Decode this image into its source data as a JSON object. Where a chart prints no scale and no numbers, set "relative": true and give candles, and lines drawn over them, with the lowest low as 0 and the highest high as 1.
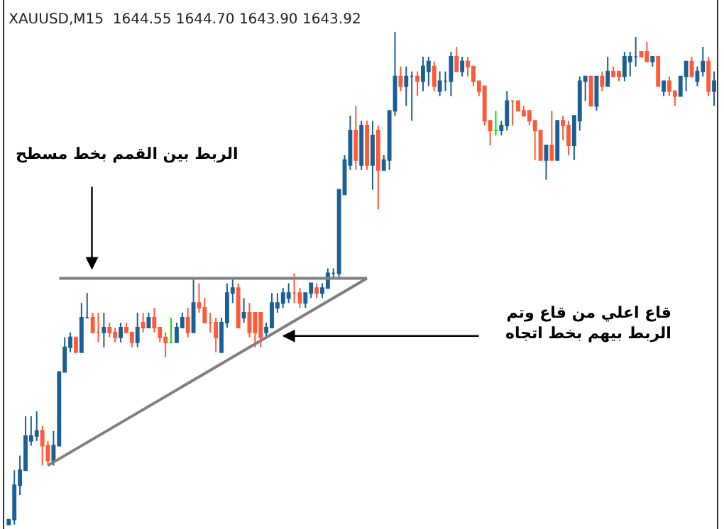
{
  "chart_data": {
    "type": "candlestick",
    "title": "XAUUSD,M15  1644.55 1644.70 1643.90 1643.92",
    "relative": true,
    "tick_labels": false,
    "categories": [
      null,
      null,
      null,
      null,
      null,
      null,
      null,
      null,
      null,
      null,
      null,
      null,
      null,
      null,
      null,
      null,
      null,
      null,
      null,
      null,
      null,
      null,
      null,
      null,
      null,
      null,
      null,
      null,
      null,
      null,
      null,
      null,
      null,
      null,
      null,
      null,
      null,
      null,
      null,
      null,
      null,
      null,
      null,
      null,
      null,
      null,
      null,
      null,
      null,
      null,
      null,
      null,
      null,
      null,
      null,
      null,
      null,
      null,
      null,
      null,
      null,
      null,
      null,
      null,
      null,
      null,
      null,
      null,
      null,
      null,
      null,
      null,
      null,
      null,
      null,
      null,
      null,
      null,
      null,
      null,
      null,
      null,
      null,
      null,
      null,
      null,
      null,
      null,
      null,
      null,
      null,
      null,
      null,
      null,
      null,
      null,
      null,
      null,
      null,
      null,
      null,
      null,
      null,
      null,
      null,
      null,
      null,
      null,
      null,
      null,
      null,
      null,
      null,
      null,
      null,
      null,
      null,
      null,
      null,
      null,
      null,
      null,
      null,
      null,
      null,
      null,
      null
    ],
    "ohlc": [
      [
        0.0,
        0.01,
        0.0,
        0.01
      ],
      [
        0.01,
        0.11,
        0.0,
        0.08
      ],
      [
        0.08,
        0.14,
        0.06,
        0.11
      ],
      [
        0.11,
        0.22,
        0.11,
        0.18
      ],
      [
        0.17,
        0.22,
        0.16,
        0.18
      ],
      [
        0.18,
        0.23,
        0.17,
        0.19
      ],
      [
        0.19,
        0.2,
        0.12,
        0.16
      ],
      [
        0.16,
        0.17,
        0.12,
        0.13
      ],
      [
        0.13,
        0.19,
        0.12,
        0.16
      ],
      [
        0.16,
        0.31,
        0.16,
        0.31
      ],
      [
        0.31,
        0.38,
        0.31,
        0.36
      ],
      [
        0.36,
        0.39,
        0.35,
        0.38
      ],
      [
        0.38,
        0.38,
        0.35,
        0.35
      ],
      [
        0.35,
        0.45,
        0.35,
        0.42
      ],
      [
        0.42,
        0.47,
        0.42,
        0.42
      ],
      [
        0.42,
        0.43,
        0.39,
        0.39
      ],
      [
        0.39,
        0.43,
        0.37,
        0.39
      ],
      [
        0.39,
        0.43,
        0.36,
        0.4
      ],
      [
        0.4,
        0.41,
        0.38,
        0.39
      ],
      [
        0.39,
        0.4,
        0.37,
        0.38
      ],
      [
        0.38,
        0.41,
        0.37,
        0.4
      ],
      [
        0.4,
        0.41,
        0.39,
        0.39
      ],
      [
        0.39,
        0.39,
        0.36,
        0.37
      ],
      [
        0.37,
        0.43,
        0.36,
        0.4
      ],
      [
        0.41,
        0.43,
        0.39,
        0.4
      ],
      [
        0.4,
        0.43,
        0.4,
        0.42
      ],
      [
        0.42,
        0.44,
        0.39,
        0.4
      ],
      [
        0.4,
        0.4,
        0.37,
        0.38
      ],
      [
        0.38,
        0.39,
        0.34,
        0.37
      ],
      [
        0.37,
        0.42,
        0.37,
        0.37
      ],
      [
        0.37,
        0.41,
        0.37,
        0.4
      ],
      [
        0.4,
        0.43,
        0.4,
        0.42
      ],
      [
        0.42,
        0.44,
        0.38,
        0.39
      ],
      [
        0.39,
        0.5,
        0.39,
        0.45
      ],
      [
        0.45,
        0.49,
        0.43,
        0.44
      ],
      [
        0.44,
        0.46,
        0.41,
        0.41
      ],
      [
        0.41,
        0.43,
        0.39,
        0.41
      ],
      [
        0.41,
        0.42,
        0.35,
        0.38
      ],
      [
        0.35,
        0.42,
        0.35,
        0.41
      ],
      [
        0.41,
        0.49,
        0.4,
        0.47
      ],
      [
        0.47,
        0.5,
        0.45,
        0.48
      ],
      [
        0.48,
        0.49,
        0.4,
        0.4
      ],
      [
        0.42,
        0.46,
        0.41,
        0.43
      ],
      [
        0.43,
        0.45,
        0.38,
        0.39
      ],
      [
        0.43,
        0.43,
        0.36,
        0.39
      ],
      [
        0.43,
        0.43,
        0.36,
        0.38
      ],
      [
        0.39,
        0.41,
        0.38,
        0.4
      ],
      [
        0.4,
        0.47,
        0.4,
        0.45
      ],
      [
        0.44,
        0.47,
        0.43,
        0.45
      ],
      [
        0.45,
        0.48,
        0.44,
        0.47
      ],
      [
        0.46,
        0.49,
        0.45,
        0.47
      ],
      [
        0.47,
        0.51,
        0.45,
        0.47
      ],
      [
        0.47,
        0.48,
        0.44,
        0.45
      ],
      [
        0.45,
        0.47,
        0.44,
        0.47
      ],
      [
        0.47,
        0.49,
        0.46,
        0.49
      ],
      [
        0.48,
        0.49,
        0.46,
        0.47
      ],
      [
        0.47,
        0.49,
        0.46,
        0.48
      ],
      [
        0.48,
        0.52,
        0.48,
        0.51
      ],
      [
        0.51,
        0.52,
        0.5,
        0.51
      ],
      [
        0.51,
        0.68,
        0.5,
        0.68
      ],
      [
        0.67,
        0.75,
        0.67,
        0.74
      ],
      [
        0.73,
        0.83,
        0.72,
        0.8
      ],
      [
        0.8,
        0.85,
        0.72,
        0.74
      ],
      [
        0.73,
        0.82,
        0.72,
        0.81
      ],
      [
        0.81,
        0.82,
        0.72,
        0.73
      ],
      [
        0.73,
        0.82,
        0.68,
        0.79
      ],
      [
        0.8,
        0.81,
        0.64,
        0.72
      ],
      [
        0.72,
        0.75,
        0.72,
        0.74
      ],
      [
        0.74,
        0.84,
        0.72,
        0.84
      ],
      [
        0.84,
        1.0,
        0.83,
        0.91
      ],
      [
        0.91,
        0.93,
        0.88,
        0.89
      ],
      [
        0.89,
        0.93,
        0.85,
        0.91
      ],
      [
        0.91,
        0.92,
        0.82,
        0.91
      ],
      [
        0.91,
        0.92,
        0.87,
        0.9
      ],
      [
        0.9,
        0.95,
        0.88,
        0.93
      ],
      [
        0.92,
        0.95,
        0.89,
        0.94
      ],
      [
        0.93,
        0.94,
        0.88,
        0.89
      ],
      [
        0.88,
        0.92,
        0.87,
        0.9
      ],
      [
        0.9,
        0.92,
        0.88,
        0.9
      ],
      [
        0.9,
        0.96,
        0.87,
        0.95
      ],
      [
        0.95,
        0.97,
        0.92,
        0.92
      ],
      [
        0.92,
        0.95,
        0.91,
        0.94
      ],
      [
        0.94,
        0.95,
        0.91,
        0.93
      ],
      [
        0.93,
        0.93,
        0.89,
        0.9
      ],
      [
        0.9,
        0.9,
        0.87,
        0.88
      ],
      [
        0.89,
        0.89,
        0.81,
        0.82
      ],
      [
        0.82,
        0.82,
        0.77,
        0.8
      ],
      [
        0.8,
        0.84,
        0.79,
        0.8
      ],
      [
        0.8,
        0.82,
        0.79,
        0.81
      ],
      [
        0.81,
        0.88,
        0.8,
        0.86
      ],
      [
        0.86,
        0.86,
        0.81,
        0.86
      ],
      [
        0.86,
        0.86,
        0.84,
        0.84
      ],
      [
        0.84,
        0.85,
        0.83,
        0.83
      ],
      [
        0.84,
        0.84,
        0.81,
        0.82
      ],
      [
        0.82,
        0.82,
        0.74,
        0.8
      ],
      [
        0.8,
        0.8,
        0.74,
        0.74
      ],
      [
        0.74,
        0.77,
        0.7,
        0.77
      ],
      [
        0.77,
        0.84,
        0.74,
        0.74
      ],
      [
        0.74,
        0.82,
        0.74,
        0.82
      ],
      [
        0.82,
        0.83,
        0.78,
        0.81
      ],
      [
        0.81,
        0.82,
        0.75,
        0.77
      ],
      [
        0.77,
        0.83,
        0.74,
        0.83
      ],
      [
        0.82,
        0.91,
        0.8,
        0.9
      ],
      [
        0.9,
        0.91,
        0.86,
        0.91
      ],
      [
        0.91,
        0.91,
        0.85,
        0.85
      ],
      [
        0.85,
        0.91,
        0.84,
        0.91
      ],
      [
        0.91,
        0.92,
        0.88,
        0.89
      ],
      [
        0.89,
        0.95,
        0.89,
        0.92
      ],
      [
        0.92,
        0.93,
        0.91,
        0.91
      ],
      [
        0.92,
        0.92,
        0.9,
        0.91
      ],
      [
        0.91,
        0.96,
        0.9,
        0.95
      ],
      [
        0.94,
        0.96,
        0.91,
        0.95
      ],
      [
        0.95,
        0.99,
        0.93,
        0.95
      ],
      [
        0.96,
        0.96,
        0.95,
        0.95
      ],
      [
        0.96,
        0.98,
        0.94,
        0.94
      ],
      [
        0.94,
        0.95,
        0.93,
        0.95
      ],
      [
        0.95,
        0.95,
        0.89,
        0.89
      ],
      [
        0.88,
        0.9,
        0.87,
        0.9
      ],
      [
        0.9,
        0.91,
        0.87,
        0.88
      ],
      [
        0.88,
        0.88,
        0.85,
        0.87
      ],
      [
        0.87,
        0.91,
        0.87,
        0.91
      ],
      [
        0.91,
        0.94,
        0.88,
        0.94
      ],
      [
        0.94,
        0.95,
        0.91,
        0.91
      ],
      [
        0.9,
        0.93,
        0.89,
        0.92
      ],
      [
        0.92,
        0.97,
        0.91,
        0.94
      ],
      [
        0.94,
        0.95,
        0.87,
        0.88
      ],
      [
        0.88,
        0.92,
        0.85,
        0.9
      ]
    ],
    "colors": [
      "#1a5f96",
      "#1a5f96",
      "#1a5f96",
      "#1a5f96",
      "#1a5f96",
      "#1a5f96",
      "#ff5a36",
      "#ff5a36",
      "#1a5f96",
      "#1a5f96",
      "#1a5f96",
      "#1a5f96",
      "#ff5a36",
      "#1a5f96",
      "#1a5f96",
      "#ff5a36",
      "#ff5a36",
      "#1a5f96",
      "#ff5a36",
      "#ff5a36",
      "#1a5f96",
      "#ff5a36",
      "#ff5a36",
      "#1a5f96",
      "#ff5a36",
      "#1a5f96",
      "#ff5a36",
      "#ff5a36",
      "#ff5a36",
      "#00e600",
      "#1a5f96",
      "#1a5f96",
      "#ff5a36",
      "#1a5f96",
      "#ff5a36",
      "#ff5a36",
      "#ff5a36",
      "#ff5a36",
      "#1a5f96",
      "#1a5f96",
      "#1a5f96",
      "#ff5a36",
      "#1a5f96",
      "#ff5a36",
      "#ff5a36",
      "#ff5a36",
      "#1a5f96",
      "#1a5f96",
      "#1a5f96",
      "#1a5f96",
      "#1a5f96",
      "#ff5a36",
      "#ff5a36",
      "#1a5f96",
      "#1a5f96",
      "#ff5a36",
      "#1a5f96",
      "#1a5f96",
      "#1a5f96",
      "#1a5f96",
      "#1a5f96",
      "#1a5f96",
      "#ff5a36",
      "#1a5f96",
      "#ff5a36",
      "#1a5f96",
      "#ff5a36",
      "#1a5f96",
      "#1a5f96",
      "#1a5f96",
      "#ff5a36",
      "#1a5f96",
      "#1a5f96",
      "#ff5a36",
      "#1a5f96",
      "#1a5f96",
      "#ff5a36",
      "#1a5f96",
      "#1a5f96",
      "#1a5f96",
      "#ff5a36",
      "#1a5f96",
      "#ff5a36",
      "#ff5a36",
      "#ff5a36",
      "#ff5a36",
      "#ff5a36",
      "#00e600",
      "#1a5f96",
      "#1a5f96",
      "#ff5a36",
      "#ff5a36",
      "#ff5a36",
      "#ff5a36",
      "#ff5a36",
      "#ff5a36",
      "#1a5f96",
      "#ff5a36",
      "#1a5f96",
      "#ff5a36",
      "#ff5a36",
      "#1a5f96",
      "#1a5f96",
      "#1a5f96",
      "#ff5a36",
      "#1a5f96",
      "#ff5a36",
      "#1a5f96",
      "#ff5a36",
      "#ff5a36",
      "#1a5f96",
      "#1a5f96",
      "#1a5f96",
      "#ff5a36",
      "#ff5a36",
      "#1a5f96",
      "#ff5a36",
      "#1a5f96",
      "#ff5a36",
      "#ff5a36",
      "#1a5f96",
      "#1a5f96",
      "#ff5a36",
      "#1a5f96",
      "#1a5f96",
      "#ff5a36",
      "#1a5f96"
    ],
    "series": [
      {
        "type": "line",
        "values": [
          null,
          null,
          null,
          null,
          null,
          null,
          null,
          null,
          null,
          0.5,
          null,
          null,
          null,
          null,
          null,
          null,
          null,
          null,
          null,
          null,
          null,
          null,
          null,
          null,
          null,
          null,
          null,
          null,
          null,
          null,
          null,
          null,
          null,
          null,
          null,
          null,
          null,
          null,
          null,
          null,
          null,
          null,
          null,
          null,
          null,
          null,
          null,
          null,
          null,
          null,
          null,
          null,
          null,
          null,
          null,
          null,
          null,
          null,
          null,
          null,
          null,
          null,
          null,
          null,
          0.5,
          null,
          null,
          null,
          null,
          null,
          null,
          null,
          null,
          null,
          null,
          null,
          null,
          null,
          null,
          null,
          null,
          null,
          null,
          null,
          null,
          null,
          null,
          null,
          null,
          null,
          null,
          null,
          null,
          null,
          null,
          null,
          null,
          null,
          null,
          null,
          null,
          null,
          null,
          null,
          null,
          null,
          null,
          null,
          null,
          null,
          null,
          null,
          null,
          null,
          null,
          null,
          null,
          null,
          null,
          null,
          null,
          null,
          null,
          null,
          null,
          null,
          null
        ],
        "color": "#808080"
      },
      {
        "type": "line",
        "values": [
          null,
          null,
          null,
          null,
          null,
          null,
          null,
          0.12,
          null,
          null,
          null,
          null,
          null,
          null,
          null,
          null,
          null,
          null,
          null,
          null,
          null,
          null,
          null,
          null,
          null,
          null,
          null,
          null,
          null,
          null,
          null,
          null,
          null,
          null,
          null,
          null,
          null,
          null,
          null,
          null,
          null,
          null,
          null,
          null,
          null,
          null,
          null,
          null,
          null,
          null,
          null,
          null,
          null,
          null,
          null,
          null,
          null,
          null,
          null,
          null,
          null,
          null,
          null,
          null,
          0.5,
          null,
          null,
          null,
          null,
          null,
          null,
          null,
          null,
          null,
          null,
          null,
          null,
          null,
          null,
          null,
          null,
          null,
          null,
          null,
          null,
          null,
          null,
          null,
          null,
          null,
          null,
          null,
          null,
          null,
          null,
          null,
          null,
          null,
          null,
          null,
          null,
          null,
          null,
          null,
          null,
          null,
          null,
          null,
          null,
          null,
          null,
          null,
          null,
          null,
          null,
          null,
          null,
          null,
          null,
          null,
          null,
          null,
          null,
          null,
          null,
          null,
          null
        ],
        "color": "#808080"
      }
    ],
    "annotations": [
      "الربط بين القمم بخط مسطح",
      "قاع اعلي من قاع وتم\nالربط بيهم بخط اتجاه"
    ]
  }
}
